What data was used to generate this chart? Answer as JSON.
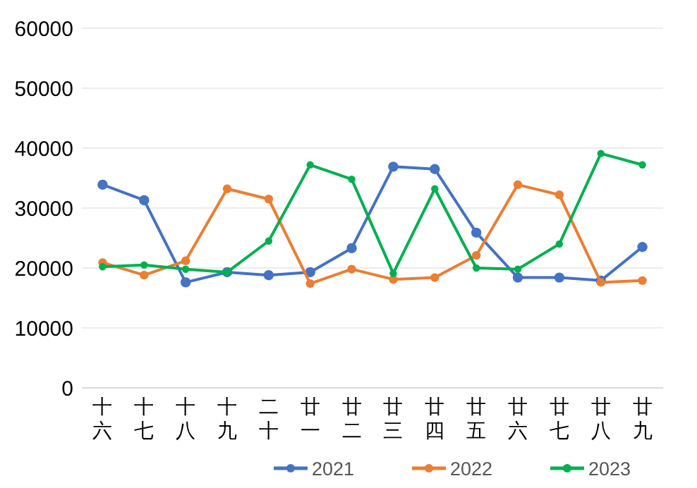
{
  "chart_data": {
    "type": "line",
    "categories": [
      "十六",
      "十七",
      "十八",
      "十九",
      "二十",
      "廿一",
      "廿二",
      "廿三",
      "廿四",
      "廿五",
      "廿六",
      "廿七",
      "廿八",
      "廿九"
    ],
    "series": [
      {
        "name": "2021",
        "color": "#4472c4",
        "values": [
          33900,
          31300,
          17600,
          19300,
          18800,
          19300,
          23300,
          36900,
          36500,
          25900,
          18400,
          18400,
          17900,
          23500
        ]
      },
      {
        "name": "2022",
        "color": "#ed7d31",
        "values": [
          20900,
          18800,
          21200,
          33200,
          31500,
          17400,
          19800,
          18100,
          18400,
          22100,
          33900,
          32200,
          17600,
          17900
        ]
      },
      {
        "name": "2023",
        "color": "#00b050",
        "values": [
          20200,
          20500,
          19800,
          19300,
          24500,
          37200,
          34800,
          19100,
          33200,
          20000,
          19800,
          24000,
          39100,
          37200
        ]
      }
    ],
    "ylim": [
      0,
      60000
    ],
    "yticks": [
      0,
      10000,
      20000,
      30000,
      40000,
      50000,
      60000
    ],
    "grid": "y",
    "legend": "bottom right",
    "marker": "circle",
    "line_style": "solid"
  }
}
